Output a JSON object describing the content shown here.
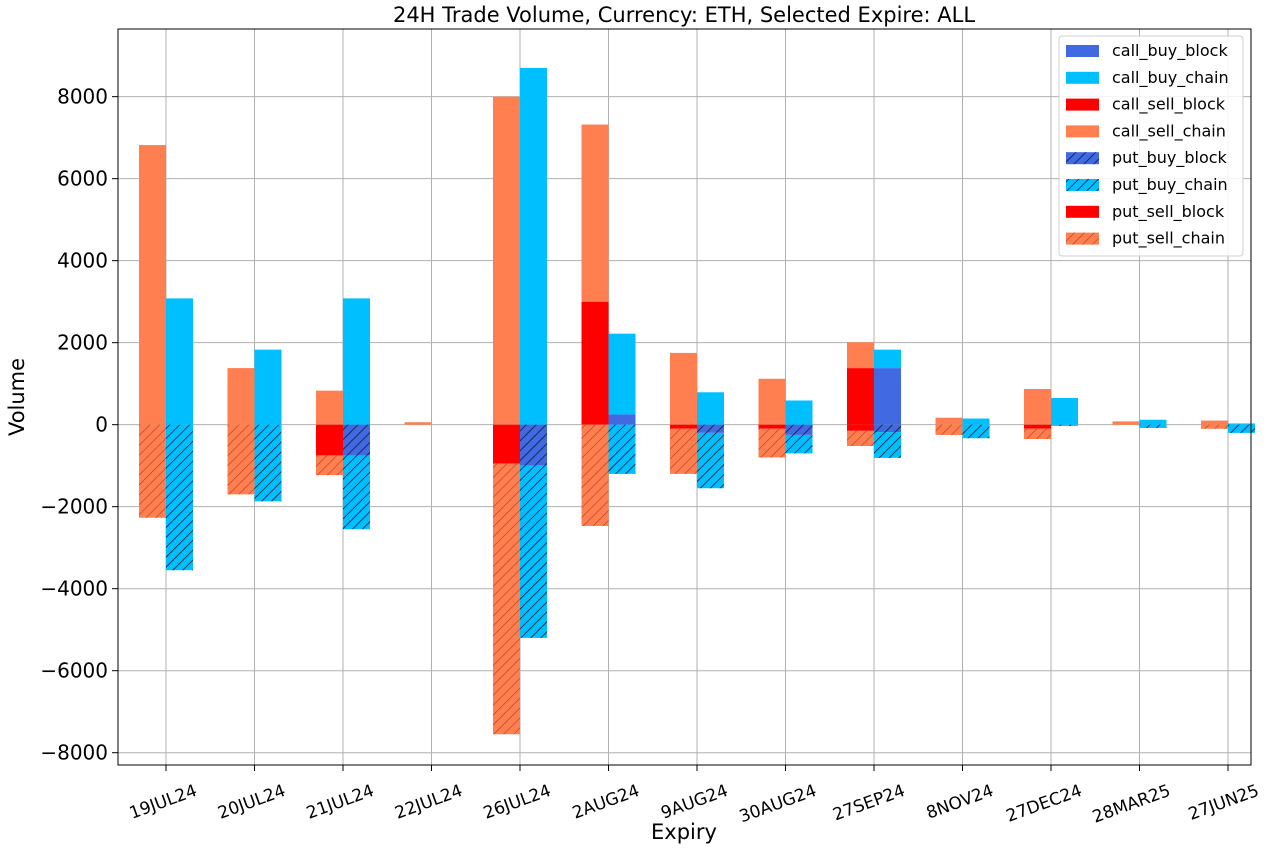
{
  "chart_data": {
    "type": "bar",
    "title": "24H Trade Volume, Currency: ETH, Selected Expire: ALL",
    "xlabel": "Expiry",
    "ylabel": "Volume",
    "ylim": [
      -8300,
      9650
    ],
    "yticks": [
      8000,
      6000,
      4000,
      2000,
      0,
      -2000,
      -4000,
      -6000,
      -8000
    ],
    "ytick_labels": [
      "8000",
      "6000",
      "4000",
      "2000",
      "0",
      "−2000",
      "−4000",
      "−6000",
      "−8000"
    ],
    "grid": true,
    "legend_position": "top-right",
    "categories": [
      "19JUL24",
      "20JUL24",
      "21JUL24",
      "22JUL24",
      "26JUL24",
      "2AUG24",
      "9AUG24",
      "30AUG24",
      "27SEP24",
      "8NOV24",
      "27DEC24",
      "28MAR25",
      "27JUN25"
    ],
    "legend": [
      {
        "name": "call_buy_block",
        "color": "#4169E1",
        "hatch": false
      },
      {
        "name": "call_buy_chain",
        "color": "#00BFFF",
        "hatch": false
      },
      {
        "name": "call_sell_block",
        "color": "#FF0000",
        "hatch": false
      },
      {
        "name": "call_sell_chain",
        "color": "#FF7F50",
        "hatch": false
      },
      {
        "name": "put_buy_block",
        "color": "#4169E1",
        "hatch": true
      },
      {
        "name": "put_buy_chain",
        "color": "#00BFFF",
        "hatch": true
      },
      {
        "name": "put_sell_block",
        "color": "#FF0000",
        "hatch": false
      },
      {
        "name": "put_sell_chain",
        "color": "#FF7F50",
        "hatch": true
      }
    ],
    "series": [
      {
        "name": "call_buy_block",
        "group": "buy",
        "sign": 1,
        "order": 0,
        "color": "#4169E1",
        "hatch": false,
        "values": [
          0,
          0,
          0,
          0,
          0,
          250,
          0,
          0,
          1380,
          0,
          0,
          0,
          0
        ]
      },
      {
        "name": "call_buy_chain",
        "group": "buy",
        "sign": 1,
        "order": 1,
        "color": "#00BFFF",
        "hatch": false,
        "values": [
          3080,
          1830,
          3080,
          0,
          8700,
          1970,
          790,
          590,
          450,
          150,
          650,
          120,
          30
        ]
      },
      {
        "name": "call_sell_block",
        "group": "sell",
        "sign": 1,
        "order": 0,
        "color": "#FF0000",
        "hatch": false,
        "values": [
          0,
          0,
          0,
          0,
          0,
          3000,
          0,
          0,
          1380,
          0,
          0,
          0,
          0
        ]
      },
      {
        "name": "call_sell_chain",
        "group": "sell",
        "sign": 1,
        "order": 1,
        "color": "#FF7F50",
        "hatch": false,
        "values": [
          6820,
          1380,
          830,
          60,
          8000,
          4320,
          1750,
          1120,
          630,
          170,
          870,
          80,
          100
        ]
      },
      {
        "name": "put_buy_block",
        "group": "buy",
        "sign": -1,
        "order": 0,
        "color": "#4169E1",
        "hatch": true,
        "values": [
          0,
          0,
          750,
          0,
          1000,
          0,
          200,
          250,
          180,
          0,
          0,
          0,
          0
        ]
      },
      {
        "name": "put_buy_chain",
        "group": "buy",
        "sign": -1,
        "order": 1,
        "color": "#00BFFF",
        "hatch": true,
        "values": [
          3550,
          1870,
          1800,
          0,
          4200,
          1200,
          1350,
          450,
          630,
          330,
          30,
          80,
          200
        ]
      },
      {
        "name": "put_sell_block",
        "group": "sell",
        "sign": -1,
        "order": 0,
        "color": "#FF0000",
        "hatch": false,
        "values": [
          0,
          0,
          750,
          0,
          950,
          0,
          100,
          100,
          150,
          0,
          100,
          0,
          0
        ]
      },
      {
        "name": "put_sell_chain",
        "group": "sell",
        "sign": -1,
        "order": 1,
        "color": "#FF7F50",
        "hatch": true,
        "values": [
          2270,
          1700,
          480,
          0,
          6600,
          2470,
          1100,
          700,
          370,
          250,
          250,
          0,
          100
        ]
      }
    ]
  }
}
